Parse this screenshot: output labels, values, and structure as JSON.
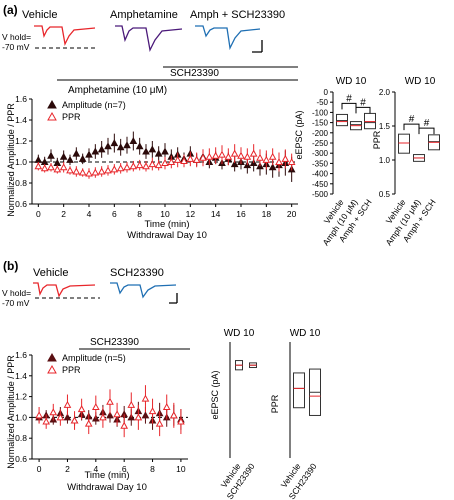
{
  "panel_a": {
    "label": "(a)",
    "traces": {
      "names": [
        "Vehicle",
        "Amphetamine",
        "Amph + SCH23390"
      ],
      "colors": [
        "#e8262b",
        "#4b1a7a",
        "#1f6fb3"
      ],
      "vhold_line1": "V hold=",
      "vhold_line2": "-70 mV"
    },
    "bars": {
      "amph": "Amphetamine (10 μM)",
      "sch": "SCH23390"
    },
    "ts_ylabel": "Normalized Amplitude / PPR",
    "ts_xlabel1": "Time (min)",
    "ts_xlabel2": "Withdrawal Day 10",
    "legend": [
      {
        "label": "Amplitude (n=7)",
        "marker": "filled-triangle",
        "color": "#2b0a0a"
      },
      {
        "label": "PPR",
        "marker": "open-triangle",
        "color": "#e8262b"
      }
    ],
    "x_ticks": [
      "0",
      "2",
      "4",
      "6",
      "8",
      "10",
      "12",
      "14",
      "16",
      "18",
      "20"
    ],
    "y_ticks": [
      "0.6",
      "0.8",
      "1.0",
      "1.2",
      "1.4",
      "1.6"
    ],
    "box1": {
      "title": "WD 10",
      "ylabel": "eEPSC (pA)",
      "y_ticks": [
        "0",
        "-50",
        "-100",
        "-150",
        "-200",
        "-250",
        "-300",
        "-350",
        "-400",
        "-450",
        "-500"
      ],
      "categories": [
        "Vehicle",
        "Amph (10 μM)",
        "Amph + SCH"
      ],
      "sig_marks": [
        "#",
        "#"
      ]
    },
    "box2": {
      "title": "WD 10",
      "ylabel": "PPR",
      "y_ticks": [
        "0.5",
        "1.0",
        "1.5",
        "2.0"
      ],
      "categories": [
        "Vehicle",
        "Amph (10 μM)",
        "Amph + SCH"
      ],
      "sig_marks": [
        "#",
        "#"
      ]
    }
  },
  "panel_b": {
    "label": "(b)",
    "traces": {
      "names": [
        "Vehicle",
        "SCH23390"
      ],
      "colors": [
        "#e8262b",
        "#1f6fb3"
      ],
      "vhold_line1": "V hold=",
      "vhold_line2": "-70 mV"
    },
    "bars": {
      "sch": "SCH23390"
    },
    "ts_ylabel": "Normalized Amplitude / PPR",
    "ts_xlabel1": "Time (min)",
    "ts_xlabel2": "Withdrawal Day 10",
    "legend": [
      {
        "label": "Amplitude (n=5)",
        "marker": "filled-triangle",
        "color": "#5a0f12"
      },
      {
        "label": "PPR",
        "marker": "open-triangle",
        "color": "#e8262b"
      }
    ],
    "x_ticks": [
      "0",
      "2",
      "4",
      "6",
      "8",
      "10"
    ],
    "y_ticks": [
      "0.6",
      "0.8",
      "1.0",
      "1.2",
      "1.4",
      "1.6"
    ],
    "box1": {
      "title": "WD 10",
      "ylabel": "eEPSC (pA)",
      "categories": [
        "Vehicle",
        "SCH23390"
      ]
    },
    "box2": {
      "title": "WD 10",
      "ylabel": "PPR",
      "categories": [
        "Vehicle",
        "SCH23390"
      ]
    }
  },
  "chart_data": [
    {
      "type": "scatter",
      "panel": "a",
      "xlabel": "Time (min)",
      "ylabel": "Normalized Amplitude / PPR",
      "xlim": [
        -0.5,
        20.5
      ],
      "ylim": [
        0.6,
        1.6
      ],
      "series": [
        {
          "name": "Amplitude (n=7)",
          "x": [
            0,
            0.5,
            1,
            1.5,
            2,
            2.5,
            3,
            3.5,
            4,
            4.5,
            5,
            5.5,
            6,
            6.5,
            7,
            7.5,
            8,
            8.5,
            9,
            9.5,
            10,
            10.5,
            11,
            11.5,
            12,
            12.5,
            13,
            13.5,
            14,
            14.5,
            15,
            15.5,
            16,
            16.5,
            17,
            17.5,
            18,
            18.5,
            19,
            19.5,
            20
          ],
          "y": [
            1.02,
            1.0,
            1.06,
            0.99,
            1.05,
            1.02,
            1.08,
            1.03,
            1.07,
            1.1,
            1.12,
            1.15,
            1.18,
            1.14,
            1.16,
            1.2,
            1.15,
            1.1,
            1.12,
            1.08,
            1.1,
            1.05,
            1.07,
            1.03,
            1.08,
            1.02,
            1.05,
            1.0,
            1.04,
            0.99,
            1.03,
            0.98,
            1.0,
            0.97,
            0.99,
            0.96,
            0.98,
            0.95,
            0.97,
            0.99,
            0.93
          ],
          "err": [
            0.05,
            0.05,
            0.06,
            0.05,
            0.06,
            0.05,
            0.06,
            0.05,
            0.06,
            0.07,
            0.08,
            0.08,
            0.09,
            0.08,
            0.08,
            0.09,
            0.08,
            0.07,
            0.08,
            0.07,
            0.08,
            0.07,
            0.07,
            0.06,
            0.07,
            0.06,
            0.07,
            0.06,
            0.06,
            0.06,
            0.06,
            0.07,
            0.07,
            0.08,
            0.08,
            0.09,
            0.1,
            0.1,
            0.11,
            0.12,
            0.12
          ]
        },
        {
          "name": "PPR",
          "x": [
            0,
            0.5,
            1,
            1.5,
            2,
            2.5,
            3,
            3.5,
            4,
            4.5,
            5,
            5.5,
            6,
            6.5,
            7,
            7.5,
            8,
            8.5,
            9,
            9.5,
            10,
            10.5,
            11,
            11.5,
            12,
            12.5,
            13,
            13.5,
            14,
            14.5,
            15,
            15.5,
            16,
            16.5,
            17,
            17.5,
            18,
            18.5,
            19,
            19.5,
            20
          ],
          "y": [
            0.96,
            0.94,
            0.95,
            0.93,
            0.95,
            0.92,
            0.91,
            0.9,
            0.89,
            0.9,
            0.91,
            0.92,
            0.93,
            0.94,
            0.95,
            0.96,
            0.97,
            0.96,
            0.98,
            0.97,
            0.99,
            1.0,
            1.02,
            1.01,
            1.03,
            1.02,
            1.04,
            1.05,
            1.06,
            1.07,
            1.05,
            1.08,
            1.06,
            1.05,
            1.08,
            1.04,
            1.02,
            1.05,
            1.0,
            1.03,
            1.0
          ],
          "err": [
            0.04,
            0.04,
            0.04,
            0.04,
            0.05,
            0.04,
            0.05,
            0.04,
            0.05,
            0.05,
            0.05,
            0.05,
            0.05,
            0.05,
            0.05,
            0.05,
            0.05,
            0.05,
            0.06,
            0.05,
            0.06,
            0.06,
            0.07,
            0.06,
            0.07,
            0.07,
            0.08,
            0.08,
            0.08,
            0.09,
            0.08,
            0.09,
            0.08,
            0.08,
            0.09,
            0.08,
            0.09,
            0.08,
            0.09,
            0.09,
            0.08
          ]
        }
      ]
    },
    {
      "type": "box",
      "panel": "a",
      "title": "WD 10",
      "ylabel": "eEPSC (pA)",
      "ylim": [
        -500,
        0
      ],
      "categories": [
        "Vehicle",
        "Amph (10 μM)",
        "Amph + SCH"
      ],
      "boxes": [
        {
          "q1": -165,
          "median": -140,
          "q3": -110,
          "mean": -145
        },
        {
          "q1": -185,
          "median": -160,
          "q3": -145,
          "mean": -165
        },
        {
          "q1": -180,
          "median": -150,
          "q3": -105,
          "mean": -145
        }
      ]
    },
    {
      "type": "box",
      "panel": "a",
      "title": "WD 10",
      "ylabel": "PPR",
      "ylim": [
        0.5,
        2.0
      ],
      "categories": [
        "Vehicle",
        "Amph (10 μM)",
        "Amph + SCH"
      ],
      "boxes": [
        {
          "q1": 1.1,
          "median": 1.25,
          "q3": 1.38,
          "mean": 1.25
        },
        {
          "q1": 0.98,
          "median": 1.03,
          "q3": 1.08,
          "mean": 1.03
        },
        {
          "q1": 1.15,
          "median": 1.27,
          "q3": 1.37,
          "mean": 1.26
        }
      ]
    },
    {
      "type": "scatter",
      "panel": "b",
      "xlabel": "Time (min)",
      "ylabel": "Normalized Amplitude / PPR",
      "xlim": [
        -0.5,
        10.5
      ],
      "ylim": [
        0.6,
        1.6
      ],
      "series": [
        {
          "name": "Amplitude (n=5)",
          "x": [
            0,
            0.5,
            1,
            1.5,
            2,
            2.5,
            3,
            3.5,
            4,
            4.5,
            5,
            5.5,
            6,
            6.5,
            7,
            7.5,
            8,
            8.5,
            9,
            9.5,
            10
          ],
          "y": [
            1.0,
            1.02,
            0.98,
            1.04,
            1.0,
            0.97,
            1.03,
            1.01,
            0.99,
            1.05,
            1.02,
            0.98,
            1.03,
            1.0,
            1.06,
            1.02,
            0.97,
            1.04,
            1.0,
            1.02,
            0.98
          ],
          "err": [
            0.05,
            0.05,
            0.05,
            0.06,
            0.06,
            0.05,
            0.06,
            0.06,
            0.06,
            0.07,
            0.07,
            0.07,
            0.08,
            0.08,
            0.09,
            0.08,
            0.09,
            0.1,
            0.09,
            0.1,
            0.1
          ]
        },
        {
          "name": "PPR",
          "x": [
            0,
            0.5,
            1,
            1.5,
            2,
            2.5,
            3,
            3.5,
            4,
            4.5,
            5,
            5.5,
            6,
            6.5,
            7,
            7.5,
            8,
            8.5,
            9,
            9.5,
            10
          ],
          "y": [
            1.02,
            0.96,
            1.05,
            1.0,
            1.12,
            0.97,
            1.08,
            0.94,
            1.1,
            1.0,
            1.15,
            1.03,
            0.92,
            1.12,
            1.0,
            1.18,
            1.06,
            0.94,
            1.1,
            1.02,
            0.96
          ],
          "err": [
            0.08,
            0.07,
            0.08,
            0.08,
            0.1,
            0.09,
            0.1,
            0.1,
            0.11,
            0.1,
            0.12,
            0.11,
            0.11,
            0.12,
            0.12,
            0.13,
            0.12,
            0.12,
            0.12,
            0.12,
            0.12
          ]
        }
      ]
    },
    {
      "type": "box",
      "panel": "b",
      "title": "WD 10",
      "ylabel": "eEPSC (pA)",
      "categories": [
        "Vehicle",
        "SCH23390"
      ],
      "boxes": [
        {
          "q1": -120,
          "median": -100,
          "q3": -80,
          "mean": -100
        },
        {
          "q1": -110,
          "median": -100,
          "q3": -90,
          "mean": -100
        }
      ]
    },
    {
      "type": "box",
      "panel": "b",
      "title": "WD 10",
      "ylabel": "PPR",
      "categories": [
        "Vehicle",
        "SCH23390"
      ],
      "boxes": [
        {
          "q1": 1.15,
          "median": 1.4,
          "q3": 1.6,
          "mean": 1.4
        },
        {
          "q1": 1.05,
          "median": 1.35,
          "q3": 1.65,
          "mean": 1.3
        }
      ]
    }
  ]
}
